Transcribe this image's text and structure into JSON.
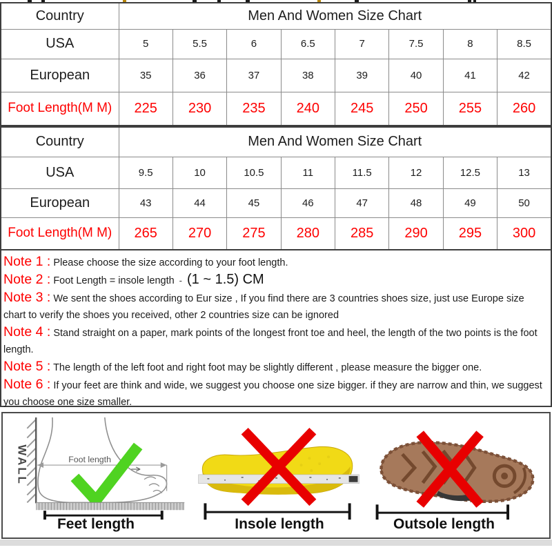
{
  "image_title": "Men And Women Size Chart",
  "colors": {
    "red_text": "#fe0000",
    "cell_border": "#8a8a8a",
    "outer_border": "#3e3e3e",
    "green_check": "#4fd321",
    "red_cross": "#e80000",
    "insole_yellow": "#f1da16",
    "outsole_brown": "#a6795b"
  },
  "size_tables": [
    {
      "corner_label": "Country",
      "title": "Men And Women Size Chart",
      "rows": [
        {
          "label": "USA",
          "red": false,
          "values": [
            "5",
            "5.5",
            "6",
            "6.5",
            "7",
            "7.5",
            "8",
            "8.5"
          ]
        },
        {
          "label": "European",
          "red": false,
          "values": [
            "35",
            "36",
            "37",
            "38",
            "39",
            "40",
            "41",
            "42"
          ]
        },
        {
          "label": "Foot Length(M M)",
          "red": true,
          "values": [
            "225",
            "230",
            "235",
            "240",
            "245",
            "250",
            "255",
            "260"
          ]
        }
      ]
    },
    {
      "corner_label": "Country",
      "title": "Men And Women Size Chart",
      "rows": [
        {
          "label": "USA",
          "red": false,
          "values": [
            "9.5",
            "10",
            "10.5",
            "11",
            "11.5",
            "12",
            "12.5",
            "13"
          ]
        },
        {
          "label": "European",
          "red": false,
          "values": [
            "43",
            "44",
            "45",
            "46",
            "47",
            "48",
            "49",
            "50"
          ]
        },
        {
          "label": "Foot Length(M M)",
          "red": true,
          "values": [
            "265",
            "270",
            "275",
            "280",
            "285",
            "290",
            "295",
            "300"
          ]
        }
      ]
    }
  ],
  "notes": [
    {
      "label": "Note 1 :",
      "text": "Please choose the size according to your foot length."
    },
    {
      "label": "Note 2 :",
      "text": "Foot Length = insole length",
      "dash": "-",
      "big_text": "(1 ~ 1.5) CM"
    },
    {
      "label": "Note 3 :",
      "text": "We sent the shoes according to Eur size , If you find there are 3 countries shoes size, just use Europe size chart to verify the shoes you received, other 2 countries size can be ignored"
    },
    {
      "label": "Note 4 :",
      "text": "Stand straight on a paper, mark points of the longest front toe and heel, the length of the two points is the foot length."
    },
    {
      "label": "Note 5 :",
      "text": "The length of the left foot and right foot may be slightly different , please measure the bigger one."
    },
    {
      "label": "Note 6 :",
      "text": "If your feet are think and wide, we suggest you choose one size bigger. if they are narrow and thin, we suggest you choose one size smaller."
    }
  ],
  "diagrams": {
    "feet": {
      "caption": "Feet length",
      "wall_label": "WALL",
      "measure_label": "Foot length",
      "mark": "green-check"
    },
    "insole": {
      "caption": "Insole length",
      "mark": "red-cross"
    },
    "outsole": {
      "caption": "Outsole length",
      "mark": "red-cross"
    }
  },
  "chart_data": [
    {
      "type": "table",
      "title": "Men And Women Size Chart",
      "row_labels": [
        "USA",
        "European",
        "Foot Length(M M)"
      ],
      "rows": [
        [
          5,
          5.5,
          6,
          6.5,
          7,
          7.5,
          8,
          8.5
        ],
        [
          35,
          36,
          37,
          38,
          39,
          40,
          41,
          42
        ],
        [
          225,
          230,
          235,
          240,
          245,
          250,
          255,
          260
        ]
      ]
    },
    {
      "type": "table",
      "title": "Men And Women Size Chart",
      "row_labels": [
        "USA",
        "European",
        "Foot Length(M M)"
      ],
      "rows": [
        [
          9.5,
          10,
          10.5,
          11,
          11.5,
          12,
          12.5,
          13
        ],
        [
          43,
          44,
          45,
          46,
          47,
          48,
          49,
          50
        ],
        [
          265,
          270,
          275,
          280,
          285,
          290,
          295,
          300
        ]
      ]
    }
  ]
}
